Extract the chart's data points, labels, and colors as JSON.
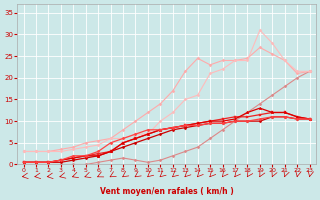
{
  "xlabel": "Vent moyen/en rafales ( km/h )",
  "background_color": "#cce8e8",
  "grid_color": "#ffffff",
  "grid_minor_color": "#ddeeee",
  "xlim": [
    -0.5,
    23.5
  ],
  "ylim": [
    0,
    37
  ],
  "xticks": [
    0,
    1,
    2,
    3,
    4,
    5,
    6,
    7,
    8,
    9,
    10,
    11,
    12,
    13,
    14,
    15,
    16,
    17,
    18,
    19,
    20,
    21,
    22,
    23
  ],
  "yticks": [
    0,
    5,
    10,
    15,
    20,
    25,
    30,
    35
  ],
  "series": [
    {
      "x": [
        0,
        1,
        2,
        3,
        4,
        5,
        6,
        7,
        8,
        9,
        10,
        11,
        12,
        13,
        14,
        15,
        16,
        17,
        18,
        19,
        20,
        21,
        22,
        23
      ],
      "y": [
        0,
        0,
        0,
        0,
        0,
        0,
        0.5,
        1,
        1.5,
        1,
        0.5,
        1,
        2,
        3,
        4,
        6,
        8,
        10,
        12,
        14,
        16,
        18,
        20,
        21.5
      ],
      "color": "#dd8888",
      "marker": "D",
      "markersize": 1.5,
      "linewidth": 0.8,
      "zorder": 2
    },
    {
      "x": [
        0,
        1,
        2,
        3,
        4,
        5,
        6,
        7,
        8,
        9,
        10,
        11,
        12,
        13,
        14,
        15,
        16,
        17,
        18,
        19,
        20,
        21,
        22,
        23
      ],
      "y": [
        3,
        3,
        3,
        3.5,
        4,
        5,
        5.5,
        6,
        8,
        10,
        12,
        14,
        17,
        21.5,
        24.5,
        23,
        24,
        24,
        24.5,
        27,
        25.5,
        24,
        21,
        21.5
      ],
      "color": "#ffaaaa",
      "marker": "D",
      "markersize": 1.5,
      "linewidth": 0.8,
      "zorder": 2
    },
    {
      "x": [
        0,
        1,
        2,
        3,
        4,
        5,
        6,
        7,
        8,
        9,
        10,
        11,
        12,
        13,
        14,
        15,
        16,
        17,
        18,
        19,
        20,
        21,
        22,
        23
      ],
      "y": [
        3,
        3,
        3,
        3,
        3.5,
        4,
        4.5,
        6,
        6,
        7,
        7,
        10,
        12,
        15,
        16,
        21,
        22,
        24,
        24,
        31,
        28,
        24,
        21.5,
        21.5
      ],
      "color": "#ffbbbb",
      "marker": "D",
      "markersize": 1.5,
      "linewidth": 0.8,
      "zorder": 2
    },
    {
      "x": [
        0,
        1,
        2,
        3,
        4,
        5,
        6,
        7,
        8,
        9,
        10,
        11,
        12,
        13,
        14,
        15,
        16,
        17,
        18,
        19,
        20,
        21,
        22,
        23
      ],
      "y": [
        0.5,
        0.5,
        0.5,
        0.5,
        1,
        1.5,
        2,
        3,
        4,
        5,
        6,
        7,
        8,
        8.5,
        9,
        9.5,
        9.5,
        10,
        10,
        10,
        11,
        11,
        10.5,
        10.5
      ],
      "color": "#cc0000",
      "marker": "D",
      "markersize": 1.5,
      "linewidth": 0.9,
      "zorder": 3
    },
    {
      "x": [
        0,
        1,
        2,
        3,
        4,
        5,
        6,
        7,
        8,
        9,
        10,
        11,
        12,
        13,
        14,
        15,
        16,
        17,
        18,
        19,
        20,
        21,
        22,
        23
      ],
      "y": [
        0.5,
        0.5,
        0.5,
        1,
        1.5,
        2,
        2.5,
        3,
        5,
        6,
        7,
        8,
        8.5,
        9,
        9.5,
        10,
        10.5,
        11,
        11,
        11.5,
        12,
        12,
        11,
        10.5
      ],
      "color": "#ee2222",
      "marker": "s",
      "markersize": 1.5,
      "linewidth": 0.9,
      "zorder": 3
    },
    {
      "x": [
        0,
        1,
        2,
        3,
        4,
        5,
        6,
        7,
        8,
        9,
        10,
        11,
        12,
        13,
        14,
        15,
        16,
        17,
        18,
        19,
        20,
        21,
        22,
        23
      ],
      "y": [
        0.5,
        0.5,
        0.5,
        1,
        1.5,
        2,
        2,
        3,
        5,
        6,
        7,
        8,
        8.5,
        9,
        9.5,
        10,
        10,
        10.5,
        12,
        13,
        12,
        12,
        11,
        10.5
      ],
      "color": "#dd0000",
      "marker": "^",
      "markersize": 1.8,
      "linewidth": 0.9,
      "zorder": 3
    },
    {
      "x": [
        0,
        1,
        2,
        3,
        4,
        5,
        6,
        7,
        8,
        9,
        10,
        11,
        12,
        13,
        14,
        15,
        16,
        17,
        18,
        19,
        20,
        21,
        22,
        23
      ],
      "y": [
        0.5,
        0.5,
        0.5,
        1,
        2,
        2,
        3,
        5,
        6,
        7,
        8,
        8,
        8.5,
        9,
        9,
        9.5,
        9.5,
        10,
        10,
        10.5,
        11,
        11,
        10.5,
        10.5
      ],
      "color": "#ff4444",
      "marker": "D",
      "markersize": 1.5,
      "linewidth": 0.9,
      "zorder": 3
    }
  ],
  "wind_arrows": {
    "color": "#cc0000",
    "x_positions": [
      0,
      1,
      2,
      3,
      4,
      5,
      6,
      7,
      8,
      9,
      10,
      11,
      12,
      13,
      14,
      15,
      16,
      17,
      18,
      19,
      20,
      21,
      22,
      23
    ],
    "angles_deg": [
      200,
      200,
      200,
      210,
      220,
      220,
      230,
      235,
      240,
      240,
      245,
      245,
      245,
      248,
      250,
      250,
      252,
      252,
      255,
      258,
      260,
      262,
      265,
      265
    ]
  }
}
